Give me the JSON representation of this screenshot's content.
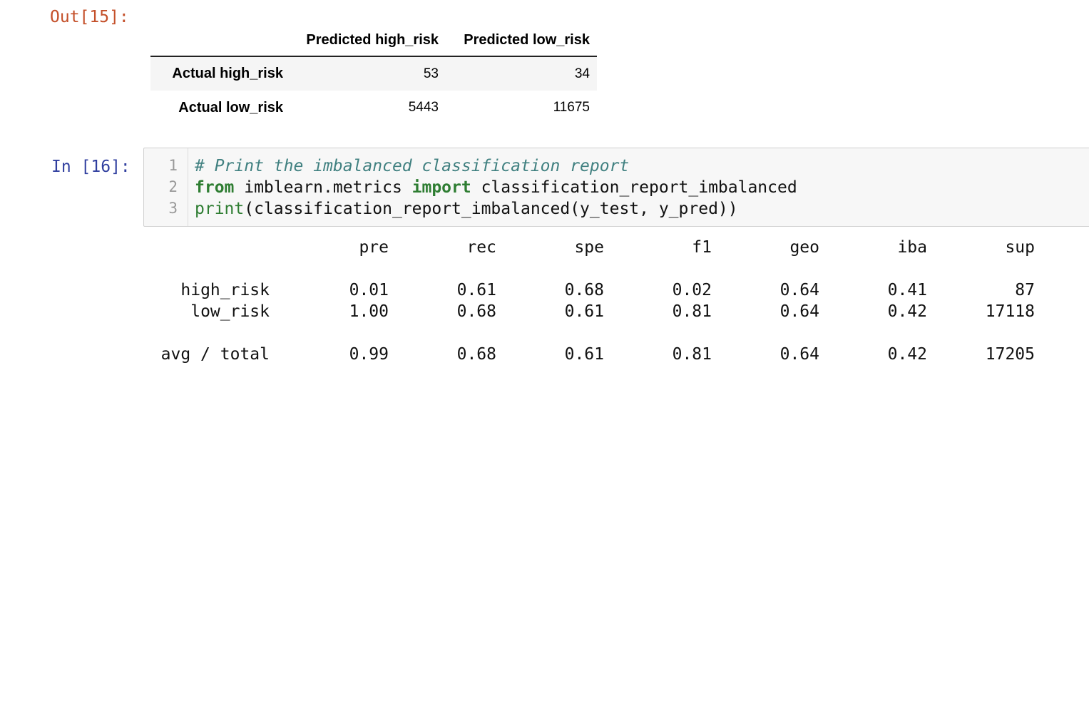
{
  "out_prompt": "Out[15]:",
  "in_prompt": "In [16]:",
  "dataframe": {
    "columns": [
      "Predicted high_risk",
      "Predicted low_risk"
    ],
    "rows": [
      {
        "index": "Actual high_risk",
        "values": [
          "53",
          "34"
        ]
      },
      {
        "index": "Actual low_risk",
        "values": [
          "5443",
          "11675"
        ]
      }
    ]
  },
  "code": {
    "line_numbers": [
      "1",
      "2",
      "3"
    ],
    "line1_comment": "# Print the imbalanced classification report",
    "line2_kw_from": "from",
    "line2_module": " imblearn.metrics ",
    "line2_kw_import": "import",
    "line2_name": " classification_report_imbalanced",
    "line3_builtin": "print",
    "line3_rest": "(classification_report_imbalanced(y_test, y_pred))"
  },
  "report": {
    "headers": [
      "pre",
      "rec",
      "spe",
      "f1",
      "geo",
      "iba",
      "sup"
    ],
    "rows": [
      {
        "label": "high_risk",
        "values": [
          "0.01",
          "0.61",
          "0.68",
          "0.02",
          "0.64",
          "0.41",
          "87"
        ]
      },
      {
        "label": "low_risk",
        "values": [
          "1.00",
          "0.68",
          "0.61",
          "0.81",
          "0.64",
          "0.42",
          "17118"
        ]
      },
      {
        "label": "avg / total",
        "values": [
          "0.99",
          "0.68",
          "0.61",
          "0.81",
          "0.64",
          "0.42",
          "17205"
        ]
      }
    ]
  }
}
